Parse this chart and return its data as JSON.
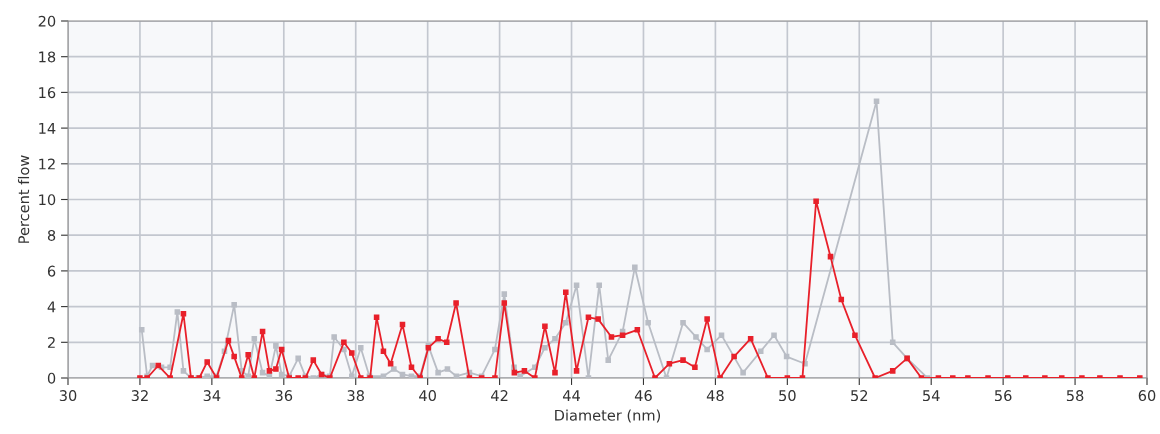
{
  "chart_data": {
    "type": "line",
    "xlabel": "Diameter (nm)",
    "ylabel": "Percent flow",
    "xlim": [
      30,
      60
    ],
    "xticks": [
      30,
      32,
      34,
      36,
      38,
      40,
      42,
      44,
      46,
      48,
      50,
      52,
      54,
      56,
      58,
      60
    ],
    "ylim": [
      0,
      20
    ],
    "yticks": [
      0,
      2,
      4,
      6,
      8,
      10,
      12,
      14,
      16,
      18,
      20
    ],
    "grid": true,
    "marker": "square",
    "line_style": "solid",
    "series": [
      {
        "color": "#b9bdc5",
        "x": [
          32.05,
          32.2,
          32.35,
          32.6,
          32.84,
          33.04,
          33.21,
          33.42,
          33.62,
          33.87,
          34.13,
          34.35,
          34.62,
          34.83,
          35.01,
          35.18,
          35.41,
          35.6,
          35.78,
          35.94,
          36.15,
          36.4,
          36.6,
          36.82,
          37.05,
          37.28,
          37.4,
          37.67,
          37.89,
          38.14,
          38.38,
          38.77,
          39.06,
          39.3,
          39.55,
          39.79,
          40.02,
          40.29,
          40.55,
          40.8,
          41.16,
          41.5,
          41.87,
          42.13,
          42.4,
          42.57,
          42.98,
          43.26,
          43.54,
          43.84,
          44.14,
          44.47,
          44.77,
          45.02,
          45.42,
          45.76,
          46.13,
          46.64,
          47.1,
          47.46,
          47.77,
          48.17,
          48.77,
          49.26,
          49.63,
          49.98,
          50.49,
          52.48,
          52.93,
          53.33,
          53.9
        ],
        "values": [
          2.7,
          0.1,
          0.7,
          0.6,
          0.6,
          3.7,
          0.4,
          0,
          0,
          0.1,
          0.1,
          1.5,
          4.1,
          0.4,
          0.1,
          2.2,
          0.3,
          0.1,
          1.8,
          0.2,
          0.1,
          1.1,
          0.1,
          0,
          0.2,
          0.1,
          2.3,
          1.6,
          0.1,
          1.7,
          0.1,
          0.1,
          0.5,
          0.2,
          0.1,
          0.1,
          1.8,
          0.3,
          0.5,
          0.1,
          0.3,
          0.1,
          1.6,
          4.7,
          0.6,
          0.1,
          0.6,
          1.7,
          2.2,
          3.1,
          5.2,
          0,
          5.2,
          1,
          2.6,
          6.2,
          3.1,
          0,
          3.1,
          2.3,
          1.6,
          2.4,
          0.3,
          1.5,
          2.4,
          1.2,
          0.8,
          15.5,
          2,
          1.1,
          0
        ]
      },
      {
        "color": "#e8202a",
        "x": [
          32.0,
          32.2,
          32.51,
          32.84,
          33.21,
          33.42,
          33.65,
          33.87,
          34.13,
          34.46,
          34.62,
          34.83,
          35.01,
          35.18,
          35.41,
          35.6,
          35.78,
          35.94,
          36.15,
          36.4,
          36.6,
          36.82,
          37.05,
          37.28,
          37.67,
          37.89,
          38.14,
          38.4,
          38.58,
          38.77,
          38.97,
          39.3,
          39.55,
          39.79,
          40.02,
          40.29,
          40.53,
          40.79,
          41.16,
          41.5,
          41.87,
          42.13,
          42.41,
          42.69,
          42.98,
          43.26,
          43.54,
          43.84,
          44.14,
          44.47,
          44.74,
          45.11,
          45.42,
          45.83,
          46.32,
          46.72,
          47.1,
          47.43,
          47.77,
          48.13,
          48.52,
          48.98,
          49.46,
          50.0,
          50.42,
          50.8,
          51.2,
          51.5,
          51.88,
          52.44,
          52.93,
          53.33,
          53.73,
          54.2,
          54.6,
          55.02,
          55.58,
          56.13,
          56.63,
          57.16,
          57.63,
          58.19,
          58.69,
          59.25,
          59.8
        ],
        "values": [
          0,
          0,
          0.7,
          0,
          3.6,
          0,
          0,
          0.9,
          0,
          2.1,
          1.2,
          0,
          1.3,
          0,
          2.6,
          0.4,
          0.5,
          1.6,
          0,
          0,
          0,
          1,
          0.2,
          0,
          2,
          1.4,
          0,
          0,
          3.4,
          1.5,
          0.8,
          3,
          0.6,
          0,
          1.7,
          2.2,
          2,
          4.2,
          0,
          0,
          0,
          4.2,
          0.3,
          0.4,
          0,
          2.9,
          0.3,
          4.8,
          0.4,
          3.4,
          3.3,
          2.3,
          2.4,
          2.7,
          0,
          0.8,
          1,
          0.6,
          3.3,
          0,
          1.2,
          2.2,
          0,
          0,
          0,
          9.9,
          6.8,
          4.4,
          2.4,
          0,
          0.4,
          1.1,
          0,
          0,
          0,
          0,
          0,
          0,
          0,
          0,
          0,
          0,
          0,
          0,
          0
        ]
      }
    ]
  }
}
